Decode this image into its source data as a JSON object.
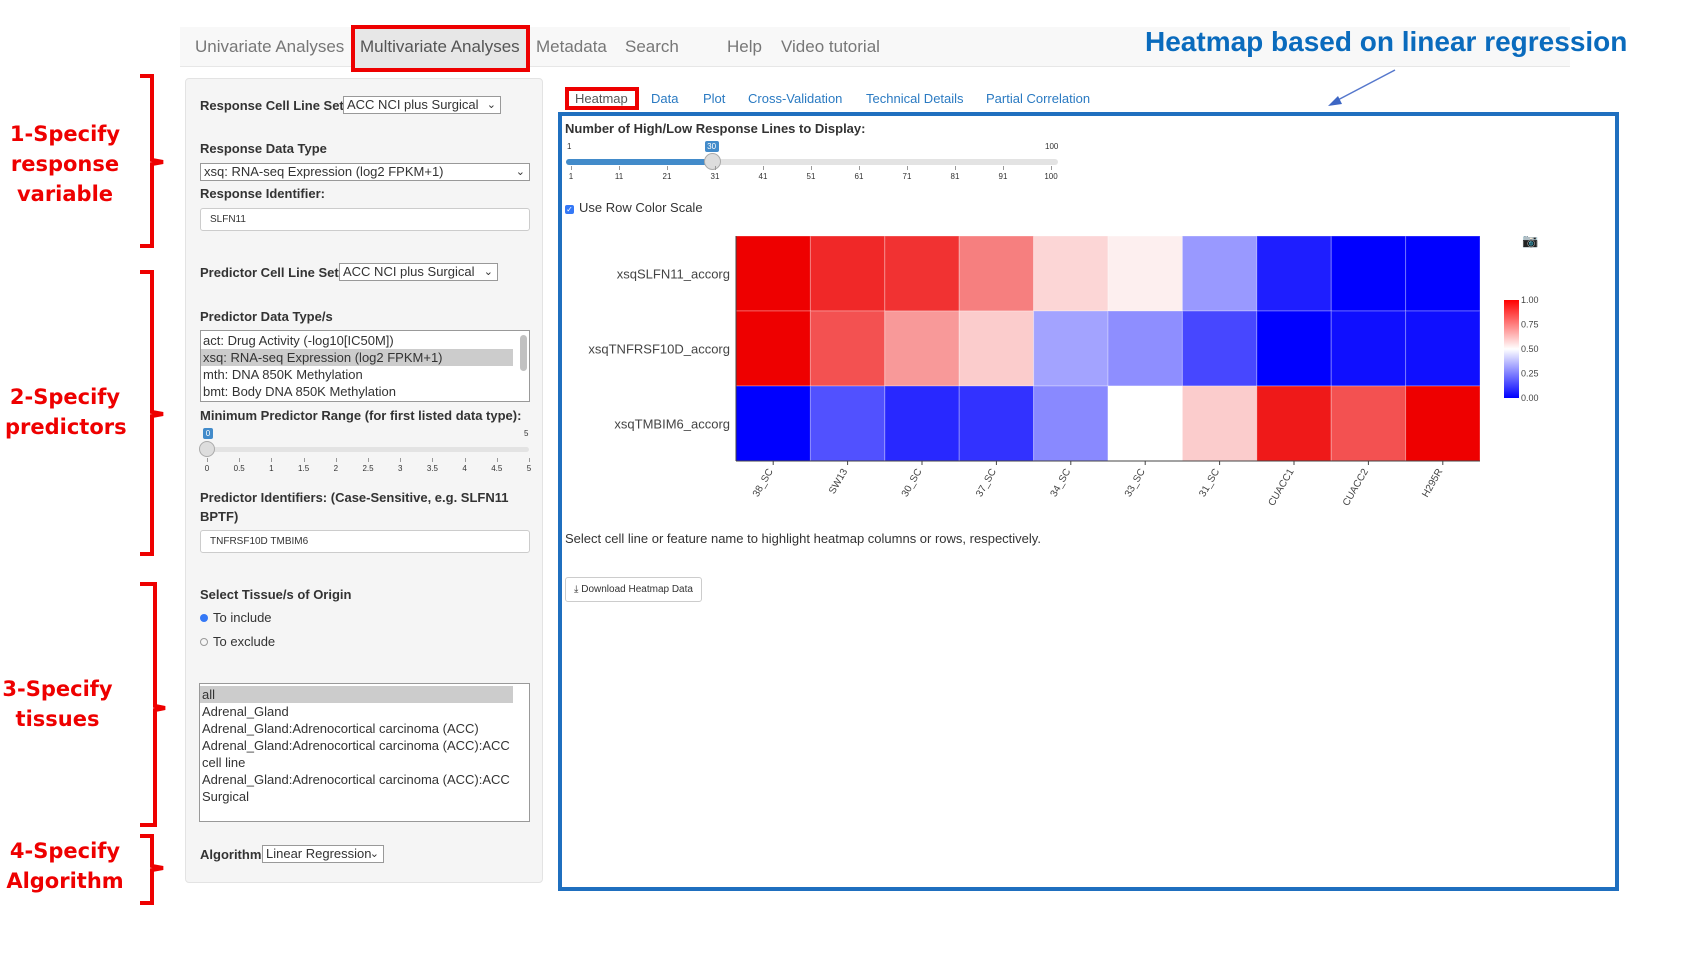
{
  "nav": {
    "items": [
      "Univariate Analyses",
      "Multivariate Analyses",
      "Metadata",
      "Search",
      "Help",
      "Video tutorial"
    ],
    "active": "Multivariate Analyses"
  },
  "annotation": {
    "title": "Heatmap based on linear regression",
    "steps": [
      [
        "1-Specify",
        "response",
        "variable"
      ],
      [
        "2-Specify",
        "predictors"
      ],
      [
        "3-Specify",
        "tissues"
      ],
      [
        "4-Specify",
        "Algorithm"
      ]
    ]
  },
  "sidebar": {
    "response_cell_line_set": {
      "label": "Response Cell Line Set",
      "value": "ACC NCI plus Surgical"
    },
    "response_data_type": {
      "label": "Response Data Type",
      "value": "xsq: RNA-seq Expression (log2 FPKM+1)"
    },
    "response_identifier": {
      "label": "Response Identifier:",
      "value": "SLFN11"
    },
    "predictor_cell_line_set": {
      "label": "Predictor Cell Line Set",
      "value": "ACC NCI plus Surgical"
    },
    "predictor_data_types": {
      "label": "Predictor Data Type/s",
      "options": [
        "act: Drug Activity (-log10[IC50M])",
        "xsq: RNA-seq Expression (log2 FPKM+1)",
        "mth: DNA 850K Methylation",
        "bmt: Body DNA 850K Methylation"
      ],
      "selected": "xsq: RNA-seq Expression (log2 FPKM+1)"
    },
    "min_predictor_range": {
      "label": "Minimum Predictor Range (for first listed data type):",
      "value": 0,
      "min": 0,
      "max": 5,
      "min_label": "0",
      "max_label": "5",
      "ticks": [
        "0",
        "0.5",
        "1",
        "1.5",
        "2",
        "2.5",
        "3",
        "3.5",
        "4",
        "4.5",
        "5"
      ]
    },
    "predictor_identifiers": {
      "label1": "Predictor Identifiers: (Case-Sensitive, e.g. SLFN11",
      "label2": "BPTF)",
      "value": "TNFRSF10D TMBIM6"
    },
    "tissue": {
      "label": "Select Tissue/s of Origin",
      "include": "To include",
      "exclude": "To exclude",
      "selected_mode": "To include",
      "options": [
        "all",
        "Adrenal_Gland",
        "Adrenal_Gland:Adrenocortical carcinoma (ACC)",
        "Adrenal_Gland:Adrenocortical carcinoma (ACC):ACC cell line",
        "Adrenal_Gland:Adrenocortical carcinoma (ACC):ACC Surgical"
      ],
      "selected": "all"
    },
    "algorithm": {
      "label": "Algorithm",
      "value": "Linear Regression"
    }
  },
  "tabs": [
    "Heatmap",
    "Data",
    "Plot",
    "Cross-Validation",
    "Technical Details",
    "Partial Correlation"
  ],
  "active_tab": "Heatmap",
  "lines_slider": {
    "label": "Number of High/Low Response Lines to Display:",
    "value": 30,
    "value_label": "30",
    "min": 1,
    "max": 100,
    "min_label": "1",
    "max_label": "100",
    "ticks": [
      "1",
      "11",
      "21",
      "31",
      "41",
      "51",
      "61",
      "71",
      "81",
      "91",
      "100"
    ]
  },
  "row_color_scale": {
    "label": "Use Row Color Scale",
    "checked": true
  },
  "hint": "Select cell line or feature name to highlight heatmap columns or rows, respectively.",
  "download_label": "Download Heatmap Data",
  "chart_data": {
    "type": "heatmap",
    "rows": [
      "xsqSLFN11_accorg",
      "xsqTNFRSF10D_accorg",
      "xsqTMBIM6_accorg"
    ],
    "columns": [
      "38_SC",
      "SW13",
      "30_SC",
      "37_SC",
      "34_SC",
      "33_SC",
      "31_SC",
      "CUACC1",
      "CUACC2",
      "H295R"
    ],
    "values": [
      [
        1.0,
        0.92,
        0.9,
        0.75,
        0.58,
        0.53,
        0.3,
        0.06,
        0.0,
        0.0
      ],
      [
        1.0,
        0.84,
        0.7,
        0.6,
        0.32,
        0.28,
        0.14,
        0.0,
        0.03,
        0.03
      ],
      [
        0.0,
        0.16,
        0.08,
        0.1,
        0.27,
        0.5,
        0.6,
        0.95,
        0.84,
        1.0
      ]
    ],
    "colorscale": {
      "low": "#0000ff",
      "mid": "#ffffff",
      "high": "#ff0000",
      "range": [
        0,
        1
      ],
      "ticks": [
        "0.00",
        "0.25",
        "0.50",
        "0.75",
        "1.00"
      ]
    }
  }
}
